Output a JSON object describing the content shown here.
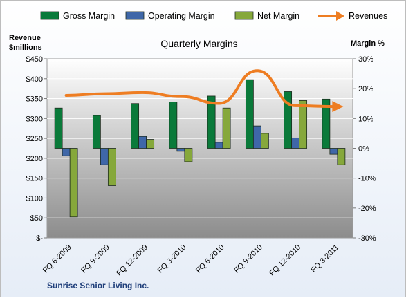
{
  "chart_data": {
    "type": "bar",
    "title": "Quarterly Margins",
    "company": "Sunrise Senior Living Inc.",
    "categories": [
      "FQ 6-2009",
      "FQ 9-2009",
      "FQ 12-2009",
      "FQ 3-2010",
      "FQ 6-2010",
      "FQ 9-2010",
      "FQ 12-2010",
      "FQ 3-2011"
    ],
    "series": [
      {
        "name": "Gross Margin",
        "axis": "right",
        "color": "#0a7a3a",
        "values": [
          13.5,
          11.0,
          15.0,
          15.5,
          17.5,
          23.0,
          19.0,
          16.5
        ]
      },
      {
        "name": "Operating Margin",
        "axis": "right",
        "color": "#3f67a8",
        "values": [
          -2.5,
          -5.5,
          4.0,
          -1.0,
          2.0,
          7.5,
          3.5,
          -2.0
        ]
      },
      {
        "name": "Net Margin",
        "axis": "right",
        "color": "#86a83b",
        "values": [
          -23.0,
          -12.5,
          3.0,
          -4.5,
          13.5,
          5.0,
          16.0,
          -5.5
        ]
      },
      {
        "name": "Revenues",
        "axis": "left",
        "type": "line",
        "color": "#ee7d22",
        "values": [
          358,
          362,
          365,
          355,
          338,
          420,
          332,
          330
        ]
      }
    ],
    "left_axis": {
      "label_line1": "Revenue",
      "label_line2": "$millions",
      "min": 0,
      "max": 450,
      "step": 50,
      "tick_labels": [
        "$-",
        "$50",
        "$100",
        "$150",
        "$200",
        "$250",
        "$300",
        "$350",
        "$400",
        "$450"
      ]
    },
    "right_axis": {
      "label": "Margin %",
      "min": -30,
      "max": 30,
      "step": 10,
      "tick_labels": [
        "-30%",
        "-20%",
        "-10%",
        "0%",
        "10%",
        "20%",
        "30%"
      ]
    },
    "legend_position": "top",
    "grid": true,
    "colors": {
      "plot_top": "#ffffff",
      "plot_bottom": "#8c8c8c",
      "gridline": "#ffffff"
    }
  }
}
